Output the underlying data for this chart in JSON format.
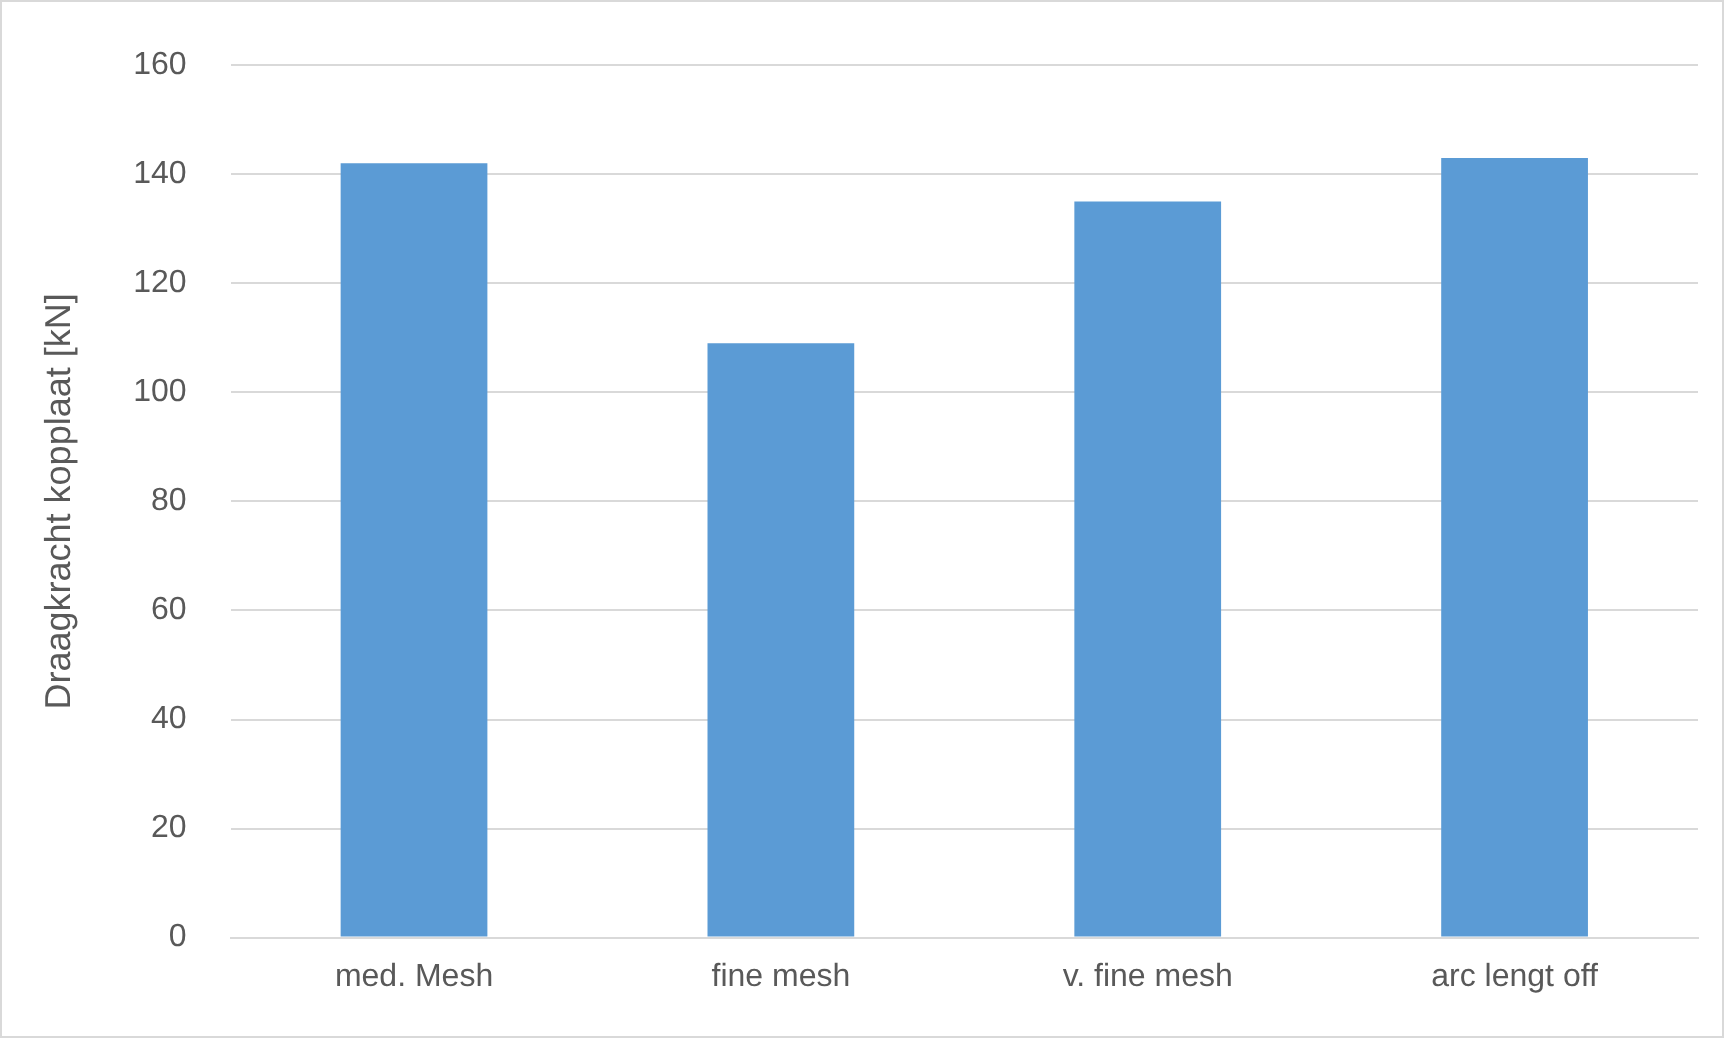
{
  "chart_data": {
    "type": "bar",
    "ylabel": "Draagkracht kopplaat [kN]",
    "categories": [
      "med. Mesh",
      "fine mesh",
      "v. fine mesh",
      "arc lengt off"
    ],
    "values": [
      142,
      109,
      135,
      143
    ],
    "color": "#5b9bd5",
    "ylim": [
      0,
      160
    ],
    "yticks": [
      0,
      20,
      40,
      60,
      80,
      100,
      120,
      140,
      160
    ],
    "grid": "y"
  }
}
